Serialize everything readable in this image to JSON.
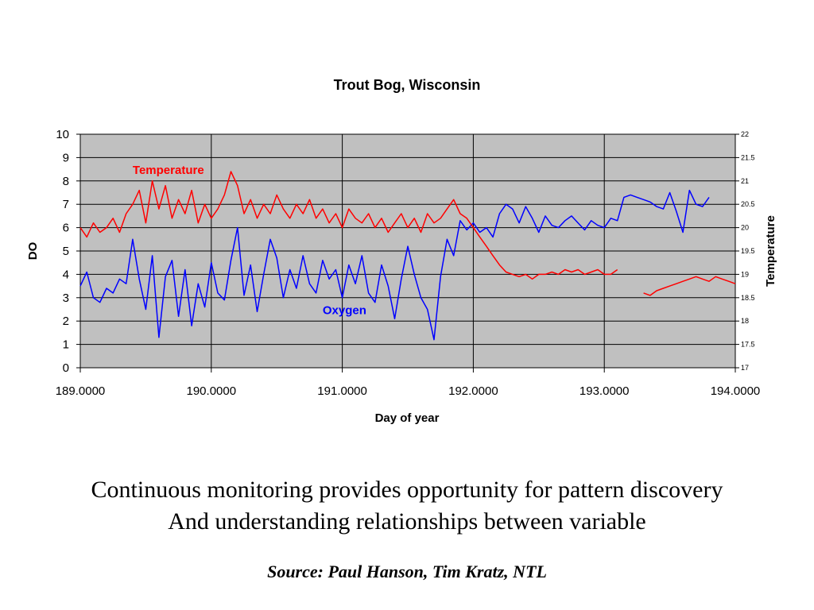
{
  "chart_data": {
    "type": "line",
    "title": "Trout Bog, Wisconsin",
    "xlabel": "Day of year",
    "ylabel": "DO",
    "y2label": "Temperature",
    "xlim": [
      189,
      194
    ],
    "ylim": [
      0,
      10
    ],
    "y2lim": [
      17,
      22
    ],
    "x_ticks": [
      "189.0000",
      "190.0000",
      "191.0000",
      "192.0000",
      "193.0000",
      "194.0000"
    ],
    "y_ticks": [
      "0",
      "1",
      "2",
      "3",
      "4",
      "5",
      "6",
      "7",
      "8",
      "9",
      "10"
    ],
    "y2_ticks": [
      "17",
      "17.5",
      "18",
      "18.5",
      "19",
      "19.5",
      "20",
      "20.5",
      "21",
      "21.5",
      "22"
    ],
    "grid": true,
    "plot_background": "#c0c0c0",
    "annotations": [
      {
        "text": "Temperature",
        "color": "#ff0000",
        "x": 189.4,
        "y": 8.3
      },
      {
        "text": "Oxygen",
        "color": "#0000ff",
        "x": 190.85,
        "y": 2.3
      }
    ],
    "series": [
      {
        "axis": "left",
        "color": "#0000ff",
        "x": [
          189.0,
          189.05,
          189.1,
          189.15,
          189.2,
          189.25,
          189.3,
          189.35,
          189.4,
          189.45,
          189.5,
          189.55,
          189.6,
          189.65,
          189.7,
          189.75,
          189.8,
          189.85,
          189.9,
          189.95,
          190.0,
          190.05,
          190.1,
          190.15,
          190.2,
          190.25,
          190.3,
          190.35,
          190.4,
          190.45,
          190.5,
          190.55,
          190.6,
          190.65,
          190.7,
          190.75,
          190.8,
          190.85,
          190.9,
          190.95,
          191.0,
          191.05,
          191.1,
          191.15,
          191.2,
          191.25,
          191.3,
          191.35,
          191.4,
          191.45,
          191.5,
          191.55,
          191.6,
          191.65,
          191.7,
          191.75,
          191.8,
          191.85,
          191.9,
          191.95,
          192.0,
          192.05,
          192.1,
          192.15,
          192.2,
          192.25,
          192.3,
          192.35,
          192.4,
          192.45,
          192.5,
          192.55,
          192.6,
          192.65,
          192.7,
          192.75,
          192.8,
          192.85,
          192.9,
          192.95,
          193.0,
          193.05,
          193.1,
          193.15,
          193.2,
          193.25,
          193.3,
          193.35,
          193.4,
          193.45,
          193.5,
          193.55,
          193.6,
          193.65,
          193.7,
          193.75,
          193.8
        ],
        "values": [
          3.5,
          4.1,
          3.0,
          2.8,
          3.4,
          3.2,
          3.8,
          3.6,
          5.5,
          3.8,
          2.5,
          4.8,
          1.3,
          3.9,
          4.6,
          2.2,
          4.2,
          1.8,
          3.6,
          2.6,
          4.5,
          3.2,
          2.9,
          4.6,
          6.0,
          3.1,
          4.4,
          2.4,
          4.0,
          5.5,
          4.7,
          3.0,
          4.2,
          3.4,
          4.8,
          3.6,
          3.2,
          4.6,
          3.8,
          4.2,
          3.0,
          4.4,
          3.6,
          4.8,
          3.2,
          2.8,
          4.4,
          3.5,
          2.1,
          3.8,
          5.2,
          4.0,
          3.0,
          2.5,
          1.2,
          3.9,
          5.5,
          4.8,
          6.3,
          5.9,
          6.2,
          5.8,
          6.0,
          5.6,
          6.6,
          7.0,
          6.8,
          6.2,
          6.9,
          6.4,
          5.8,
          6.5,
          6.1,
          6.0,
          6.3,
          6.5,
          6.2,
          5.9,
          6.3,
          6.1,
          6.0,
          6.4,
          6.3,
          7.3,
          7.4,
          7.3,
          7.2,
          7.1,
          6.9,
          6.8,
          7.5,
          6.7,
          5.8,
          7.6,
          7.0,
          6.9,
          7.3
        ]
      },
      {
        "axis": "right",
        "color": "#ff0000",
        "x": [
          189.0,
          189.05,
          189.1,
          189.15,
          189.2,
          189.25,
          189.3,
          189.35,
          189.4,
          189.45,
          189.5,
          189.55,
          189.6,
          189.65,
          189.7,
          189.75,
          189.8,
          189.85,
          189.9,
          189.95,
          190.0,
          190.05,
          190.1,
          190.15,
          190.2,
          190.25,
          190.3,
          190.35,
          190.4,
          190.45,
          190.5,
          190.55,
          190.6,
          190.65,
          190.7,
          190.75,
          190.8,
          190.85,
          190.9,
          190.95,
          191.0,
          191.05,
          191.1,
          191.15,
          191.2,
          191.25,
          191.3,
          191.35,
          191.4,
          191.45,
          191.5,
          191.55,
          191.6,
          191.65,
          191.7,
          191.75,
          191.8,
          191.85,
          191.9,
          191.95,
          192.0,
          192.05,
          192.1,
          192.15,
          192.2,
          192.25,
          192.3,
          192.35,
          192.4,
          192.45,
          192.5,
          192.55,
          192.6,
          192.65,
          192.7,
          192.75,
          192.8,
          192.85,
          192.9,
          192.95,
          193.0,
          193.05,
          193.1,
          193.3,
          193.35,
          193.4,
          193.45,
          193.5,
          193.55,
          193.6,
          193.65,
          193.7,
          193.75,
          193.8,
          193.85,
          193.9,
          193.95,
          194.0
        ],
        "values": [
          20.0,
          19.8,
          20.1,
          19.9,
          20.0,
          20.2,
          19.9,
          20.3,
          20.5,
          20.8,
          20.1,
          21.0,
          20.4,
          20.9,
          20.2,
          20.6,
          20.3,
          20.8,
          20.1,
          20.5,
          20.2,
          20.4,
          20.7,
          21.2,
          20.9,
          20.3,
          20.6,
          20.2,
          20.5,
          20.3,
          20.7,
          20.4,
          20.2,
          20.5,
          20.3,
          20.6,
          20.2,
          20.4,
          20.1,
          20.3,
          20.0,
          20.4,
          20.2,
          20.1,
          20.3,
          20.0,
          20.2,
          19.9,
          20.1,
          20.3,
          20.0,
          20.2,
          19.9,
          20.3,
          20.1,
          20.2,
          20.4,
          20.6,
          20.3,
          20.2,
          20.0,
          19.8,
          19.6,
          19.4,
          19.2,
          19.05,
          19.0,
          18.95,
          19.0,
          18.9,
          19.0,
          19.0,
          19.05,
          19.0,
          19.1,
          19.05,
          19.1,
          19.0,
          19.05,
          19.1,
          19.0,
          19.0,
          19.1,
          18.6,
          18.55,
          18.65,
          18.7,
          18.75,
          18.8,
          18.85,
          18.9,
          18.95,
          18.9,
          18.85,
          18.95,
          18.9,
          18.85,
          18.8
        ]
      }
    ]
  },
  "caption": {
    "line1": "Continuous monitoring provides opportunity for pattern discovery",
    "line2": "And understanding relationships between variable",
    "source": "Source: Paul Hanson, Tim Kratz, NTL"
  }
}
